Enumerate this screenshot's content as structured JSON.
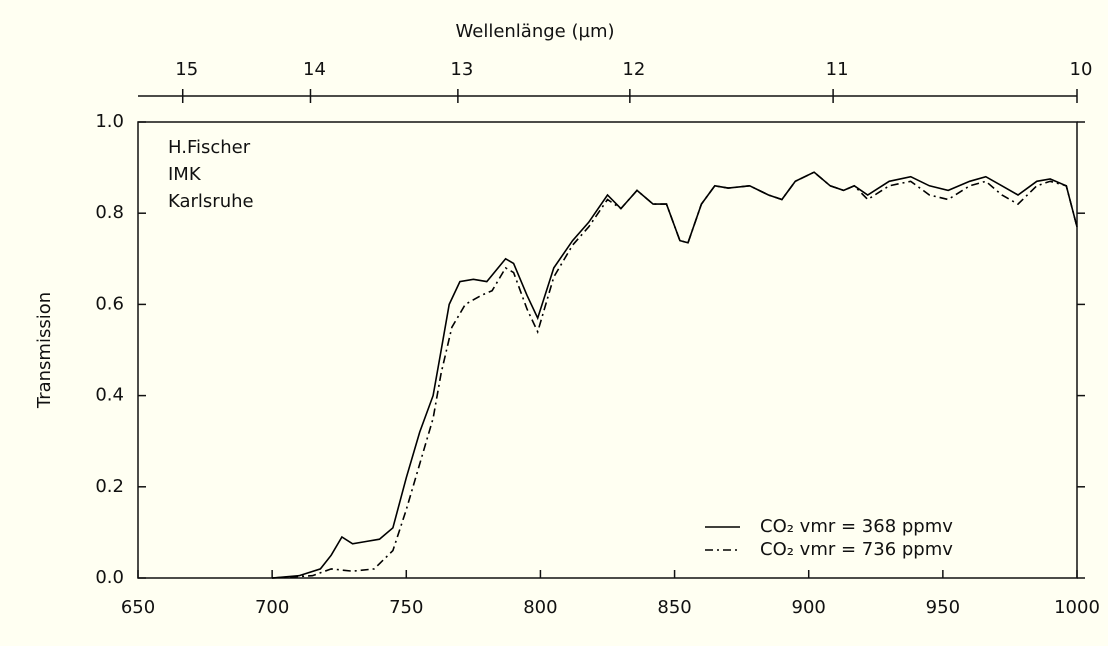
{
  "chart_data": {
    "type": "line",
    "x2label": "Wellenlänge (µm)",
    "ylabel": "Transmission",
    "annotation": [
      "H.Fischer",
      "IMK",
      "Karlsruhe"
    ],
    "xlim": [
      650,
      1000
    ],
    "xticks": [
      650,
      700,
      750,
      800,
      850,
      900,
      950,
      1000
    ],
    "x2ticks": [
      {
        "value": 666.67,
        "label": "15"
      },
      {
        "value": 714.29,
        "label": "14"
      },
      {
        "value": 769.23,
        "label": "13"
      },
      {
        "value": 833.33,
        "label": "12"
      },
      {
        "value": 909.09,
        "label": "11"
      },
      {
        "value": 1000,
        "label": "10"
      }
    ],
    "ylim": [
      0,
      1.0
    ],
    "yticks": [
      {
        "value": 0,
        "label": "0.0"
      },
      {
        "value": 0.2,
        "label": "0.2"
      },
      {
        "value": 0.4,
        "label": "0.4"
      },
      {
        "value": 0.6,
        "label": "0.6"
      },
      {
        "value": 0.8,
        "label": "0.8"
      },
      {
        "value": 1.0,
        "label": "1.0"
      }
    ],
    "grid": false,
    "legend": "lower right",
    "series": [
      {
        "name": "CO₂ vmr = 368 ppmv",
        "color": "#000000",
        "dash": "solid",
        "x": [
          700,
          710,
          718,
          722,
          726,
          730,
          735,
          740,
          745,
          750,
          755,
          760,
          763,
          766,
          770,
          775,
          780,
          787,
          790,
          795,
          799,
          805,
          812,
          818,
          825,
          830,
          836,
          842,
          847,
          852,
          855,
          860,
          865,
          870,
          878,
          885,
          890,
          895,
          902,
          908,
          913,
          917,
          922,
          930,
          938,
          945,
          952,
          960,
          966,
          972,
          978,
          985,
          990,
          996,
          1000
        ],
        "values": [
          0,
          0.005,
          0.02,
          0.05,
          0.09,
          0.075,
          0.08,
          0.085,
          0.11,
          0.22,
          0.32,
          0.4,
          0.5,
          0.6,
          0.65,
          0.655,
          0.65,
          0.7,
          0.69,
          0.62,
          0.57,
          0.68,
          0.74,
          0.78,
          0.84,
          0.81,
          0.85,
          0.82,
          0.82,
          0.74,
          0.735,
          0.82,
          0.86,
          0.855,
          0.86,
          0.84,
          0.83,
          0.87,
          0.89,
          0.86,
          0.85,
          0.86,
          0.84,
          0.87,
          0.88,
          0.86,
          0.85,
          0.87,
          0.88,
          0.86,
          0.84,
          0.87,
          0.875,
          0.86,
          0.77
        ]
      },
      {
        "name": "CO₂ vmr = 736 ppmv",
        "color": "#000000",
        "dash": "dashdot",
        "x": [
          700,
          715,
          722,
          730,
          738,
          745,
          750,
          755,
          760,
          763,
          767,
          772,
          778,
          782,
          787,
          790,
          795,
          799,
          805,
          812,
          818,
          825,
          830,
          836,
          842,
          847,
          852,
          855,
          860,
          865,
          870,
          878,
          885,
          890,
          895,
          902,
          908,
          913,
          917,
          922,
          930,
          938,
          945,
          952,
          960,
          966,
          972,
          978,
          985,
          990,
          996,
          1000
        ],
        "values": [
          0,
          0.005,
          0.02,
          0.015,
          0.02,
          0.06,
          0.15,
          0.25,
          0.35,
          0.45,
          0.55,
          0.6,
          0.62,
          0.63,
          0.68,
          0.67,
          0.59,
          0.54,
          0.66,
          0.73,
          0.77,
          0.83,
          0.81,
          0.85,
          0.82,
          0.82,
          0.74,
          0.735,
          0.82,
          0.86,
          0.855,
          0.86,
          0.84,
          0.83,
          0.87,
          0.89,
          0.86,
          0.85,
          0.86,
          0.83,
          0.86,
          0.87,
          0.84,
          0.83,
          0.86,
          0.87,
          0.84,
          0.82,
          0.86,
          0.87,
          0.86,
          0.77
        ]
      }
    ]
  }
}
